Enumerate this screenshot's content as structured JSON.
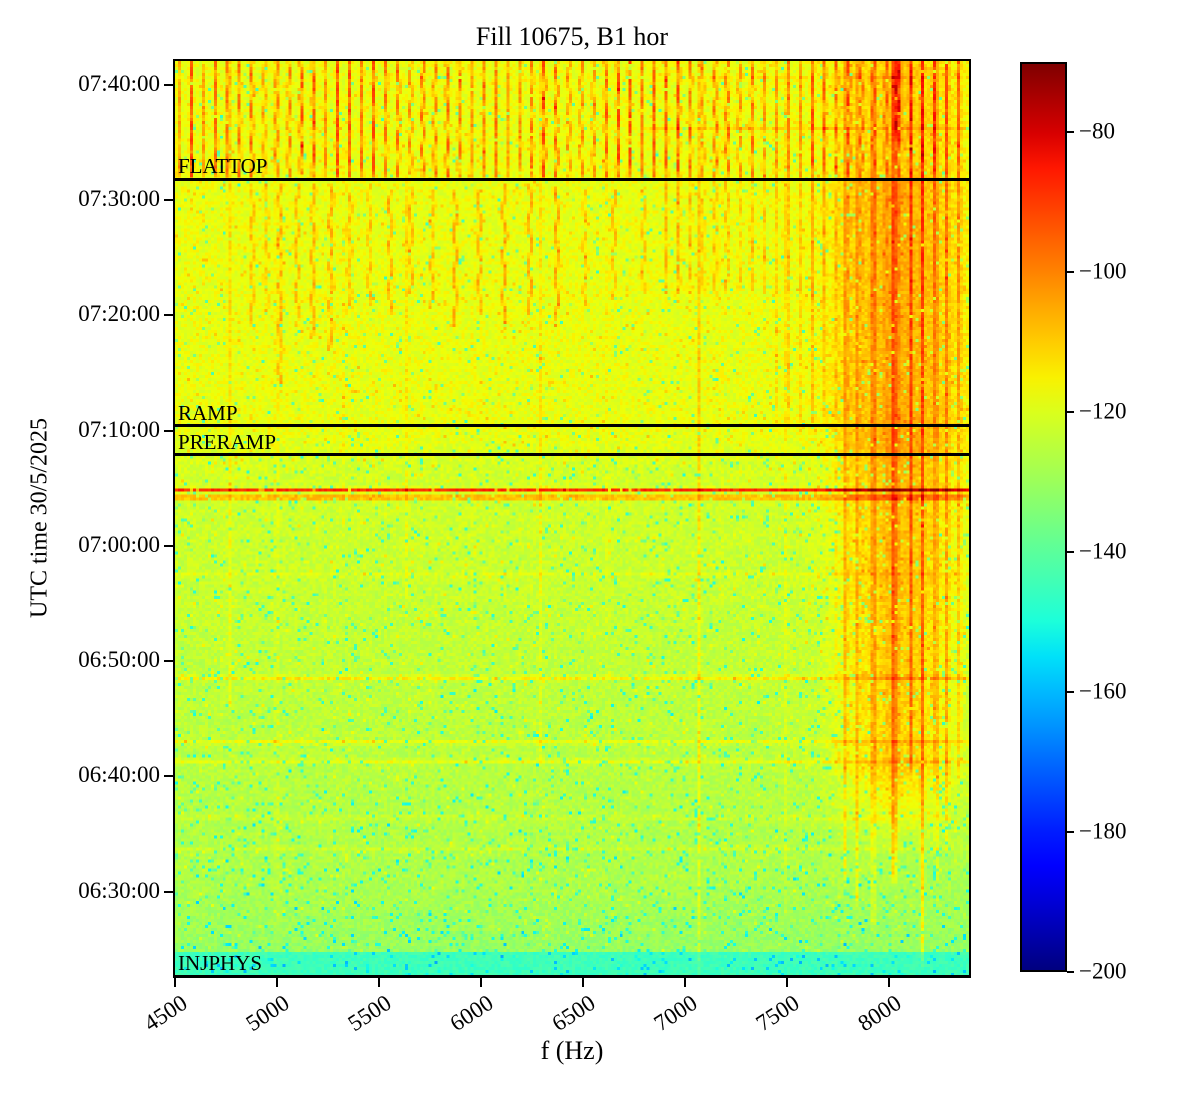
{
  "chart_data": {
    "type": "heatmap",
    "title": "Fill 10675, B1 hor",
    "xlabel": "f (Hz)",
    "ylabel": "UTC time 30/5/2025",
    "x_ticks_hz": [
      4500,
      5000,
      5500,
      6000,
      6500,
      7000,
      7500,
      8000
    ],
    "x_range_hz": [
      4490,
      8400
    ],
    "y_ticks": [
      "07:40:00",
      "07:30:00",
      "07:20:00",
      "07:10:00",
      "07:00:00",
      "06:50:00",
      "06:40:00",
      "06:30:00"
    ],
    "y_range": [
      "06:22:30",
      "07:42:15"
    ],
    "colorbar": {
      "colormap": "jet",
      "vmin": -200,
      "vmax": -70,
      "ticks": [
        -80,
        -100,
        -120,
        -140,
        -160,
        -180,
        -200
      ]
    },
    "events": [
      {
        "label": "FLATTOP",
        "time": "07:32:00"
      },
      {
        "label": "RAMP",
        "time": "07:10:35"
      },
      {
        "label": "PRERAMP",
        "time": "07:08:05"
      },
      {
        "label": "INJPHYS",
        "time": "06:22:50"
      }
    ],
    "spectrogram_features": {
      "time_unit": "minutes after 06:00 UTC",
      "background_db": {
        "injphys_band": -145,
        "injphys_band_until_min": 24.5,
        "early": -131,
        "low": -127,
        "mid": -121.5,
        "high": -118
      },
      "noise_db_pp": 7,
      "hf_band": {
        "center_hz": 8060,
        "sigma_hz": 290,
        "amp_db": {
          "injection": 14,
          "ramp": 12,
          "flattop": 8
        },
        "onset_min": 33,
        "full_min": 40
      },
      "mains_comb": {
        "base_hz": 4510,
        "spacing_hz": 60,
        "amp_db_min": 14,
        "amp_db_max": 28,
        "full_above_min": 92,
        "right_partial_above_min": 82,
        "right_min_hz": 6900
      },
      "mid_streaks": [
        {
          "f": 4870,
          "amp": 10,
          "t0": 79,
          "t1": 91.5
        },
        {
          "f": 4940,
          "amp": 9,
          "t0": 80,
          "t1": 91.5
        },
        {
          "f": 5010,
          "amp": 12,
          "t0": 74,
          "t1": 91.5
        },
        {
          "f": 5090,
          "amp": 11,
          "t0": 79,
          "t1": 91.5
        },
        {
          "f": 5170,
          "amp": 13,
          "t0": 78,
          "t1": 91.5
        },
        {
          "f": 5260,
          "amp": 15,
          "t0": 77,
          "t1": 91.5
        },
        {
          "f": 5350,
          "amp": 11,
          "t0": 80,
          "t1": 91.5
        },
        {
          "f": 5450,
          "amp": 10,
          "t0": 81,
          "t1": 91.5
        },
        {
          "f": 5550,
          "amp": 12,
          "t0": 80,
          "t1": 91
        },
        {
          "f": 5650,
          "amp": 10,
          "t0": 82,
          "t1": 91
        },
        {
          "f": 5760,
          "amp": 11,
          "t0": 80.5,
          "t1": 91
        },
        {
          "f": 5870,
          "amp": 13,
          "t0": 79,
          "t1": 91
        },
        {
          "f": 5990,
          "amp": 12,
          "t0": 80,
          "t1": 91
        },
        {
          "f": 6110,
          "amp": 14,
          "t0": 78.5,
          "t1": 91.5
        },
        {
          "f": 6240,
          "amp": 12,
          "t0": 80,
          "t1": 91.5
        },
        {
          "f": 6370,
          "amp": 13,
          "t0": 79,
          "t1": 91.5
        },
        {
          "f": 6510,
          "amp": 11,
          "t0": 81,
          "t1": 91
        },
        {
          "f": 6650,
          "amp": 10,
          "t0": 81.5,
          "t1": 91
        },
        {
          "f": 6800,
          "amp": 9,
          "t0": 82,
          "t1": 91
        }
      ],
      "vlines": [
        {
          "f": 4760,
          "amp": 6,
          "t0": 45,
          "t1": 102.3
        },
        {
          "f": 4990,
          "amp": 9,
          "t0": 22.4,
          "t1": 102.3
        },
        {
          "f": 5315,
          "amp": 5,
          "t0": 60,
          "t1": 95
        },
        {
          "f": 5630,
          "amp": 4.5,
          "t0": 55,
          "t1": 92
        },
        {
          "f": 5960,
          "amp": 4,
          "t0": 50,
          "t1": 85
        },
        {
          "f": 6290,
          "amp": 5,
          "t0": 40,
          "t1": 102.3
        },
        {
          "f": 6620,
          "amp": 4.5,
          "t0": 50,
          "t1": 102.3
        },
        {
          "f": 7070,
          "amp": 8,
          "t0": 22.4,
          "t1": 102.3
        },
        {
          "f": 7180,
          "amp": 5,
          "t0": 55,
          "t1": 102.3
        },
        {
          "f": 7500,
          "amp": 6,
          "t0": 28,
          "t1": 102.3
        },
        {
          "f": 7790,
          "amp": 10,
          "w": 8,
          "t0": 30,
          "t1": 102.3
        },
        {
          "f": 7845,
          "amp": 12,
          "w": 7,
          "t0": 28,
          "t1": 102.3
        },
        {
          "f": 7930,
          "amp": 14,
          "w": 8,
          "t0": 26,
          "t1": 102.3
        },
        {
          "f": 8030,
          "amp": 17,
          "w": 13,
          "t0": 30,
          "t1": 102.3
        },
        {
          "f": 8045,
          "amp": 14,
          "w": 20,
          "t0": 94.5,
          "t1": 102.3
        },
        {
          "f": 8115,
          "amp": 12,
          "w": 7,
          "t0": 40,
          "t1": 102.3
        },
        {
          "f": 8170,
          "amp": 14,
          "w": 8,
          "t0": 23,
          "t1": 102.3
        },
        {
          "f": 8240,
          "amp": 12,
          "w": 7,
          "t0": 30,
          "t1": 102.3
        },
        {
          "f": 8295,
          "amp": 14,
          "w": 7,
          "t0": 33,
          "t1": 102.3
        },
        {
          "f": 8355,
          "amp": 11,
          "w": 7,
          "t0": 40,
          "t1": 102.3
        }
      ],
      "hlines": [
        {
          "t": 64.85,
          "amp": 34,
          "hw": 0.15
        },
        {
          "t": 64.2,
          "amp": 28,
          "hw": 0.15
        },
        {
          "t": 57.5,
          "amp": 4,
          "hw": 0.17
        },
        {
          "t": 48.5,
          "amp": 11,
          "hw": 0.17
        },
        {
          "t": 42.9,
          "amp": 8,
          "hw": 0.17
        },
        {
          "t": 41.2,
          "amp": 8,
          "hw": 0.17
        },
        {
          "t": 36.3,
          "amp": 4,
          "hw": 0.2
        },
        {
          "t": 33.6,
          "amp": 4,
          "hw": 0.2
        },
        {
          "t": 96.4,
          "amp": 6,
          "hw": 0.15,
          "min_hz": 6800
        },
        {
          "t": 100.9,
          "amp": 5,
          "hw": 0.13,
          "min_hz": 6800
        }
      ]
    }
  }
}
